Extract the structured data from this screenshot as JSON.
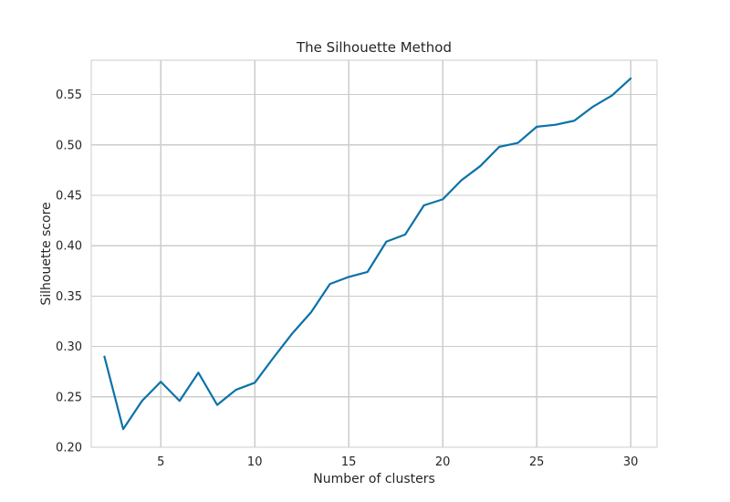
{
  "chart_data": {
    "type": "line",
    "title": "The Silhouette Method",
    "xlabel": "Number of clusters",
    "ylabel": "Silhouette score",
    "xlim": [
      1.3,
      31.4
    ],
    "ylim": [
      0.2,
      0.584
    ],
    "xticks": [
      5,
      10,
      15,
      20,
      25,
      30
    ],
    "yticks": [
      0.2,
      0.25,
      0.3,
      0.35,
      0.4,
      0.45,
      0.5,
      0.55
    ],
    "ytick_labels": [
      "0.20",
      "0.25",
      "0.30",
      "0.35",
      "0.40",
      "0.45",
      "0.50",
      "0.55"
    ],
    "grid": true,
    "series": [
      {
        "name": "Silhouette score",
        "color": "#0b72a8",
        "x": [
          2,
          3,
          4,
          5,
          6,
          7,
          8,
          9,
          10,
          11,
          12,
          13,
          14,
          15,
          16,
          17,
          18,
          19,
          20,
          21,
          22,
          23,
          24,
          25,
          26,
          27,
          28,
          29,
          30
        ],
        "y": [
          0.29,
          0.218,
          0.246,
          0.265,
          0.246,
          0.274,
          0.242,
          0.257,
          0.264,
          0.289,
          0.313,
          0.334,
          0.362,
          0.369,
          0.374,
          0.404,
          0.411,
          0.44,
          0.446,
          0.465,
          0.479,
          0.498,
          0.502,
          0.518,
          0.52,
          0.524,
          0.538,
          0.549,
          0.566
        ]
      }
    ]
  }
}
